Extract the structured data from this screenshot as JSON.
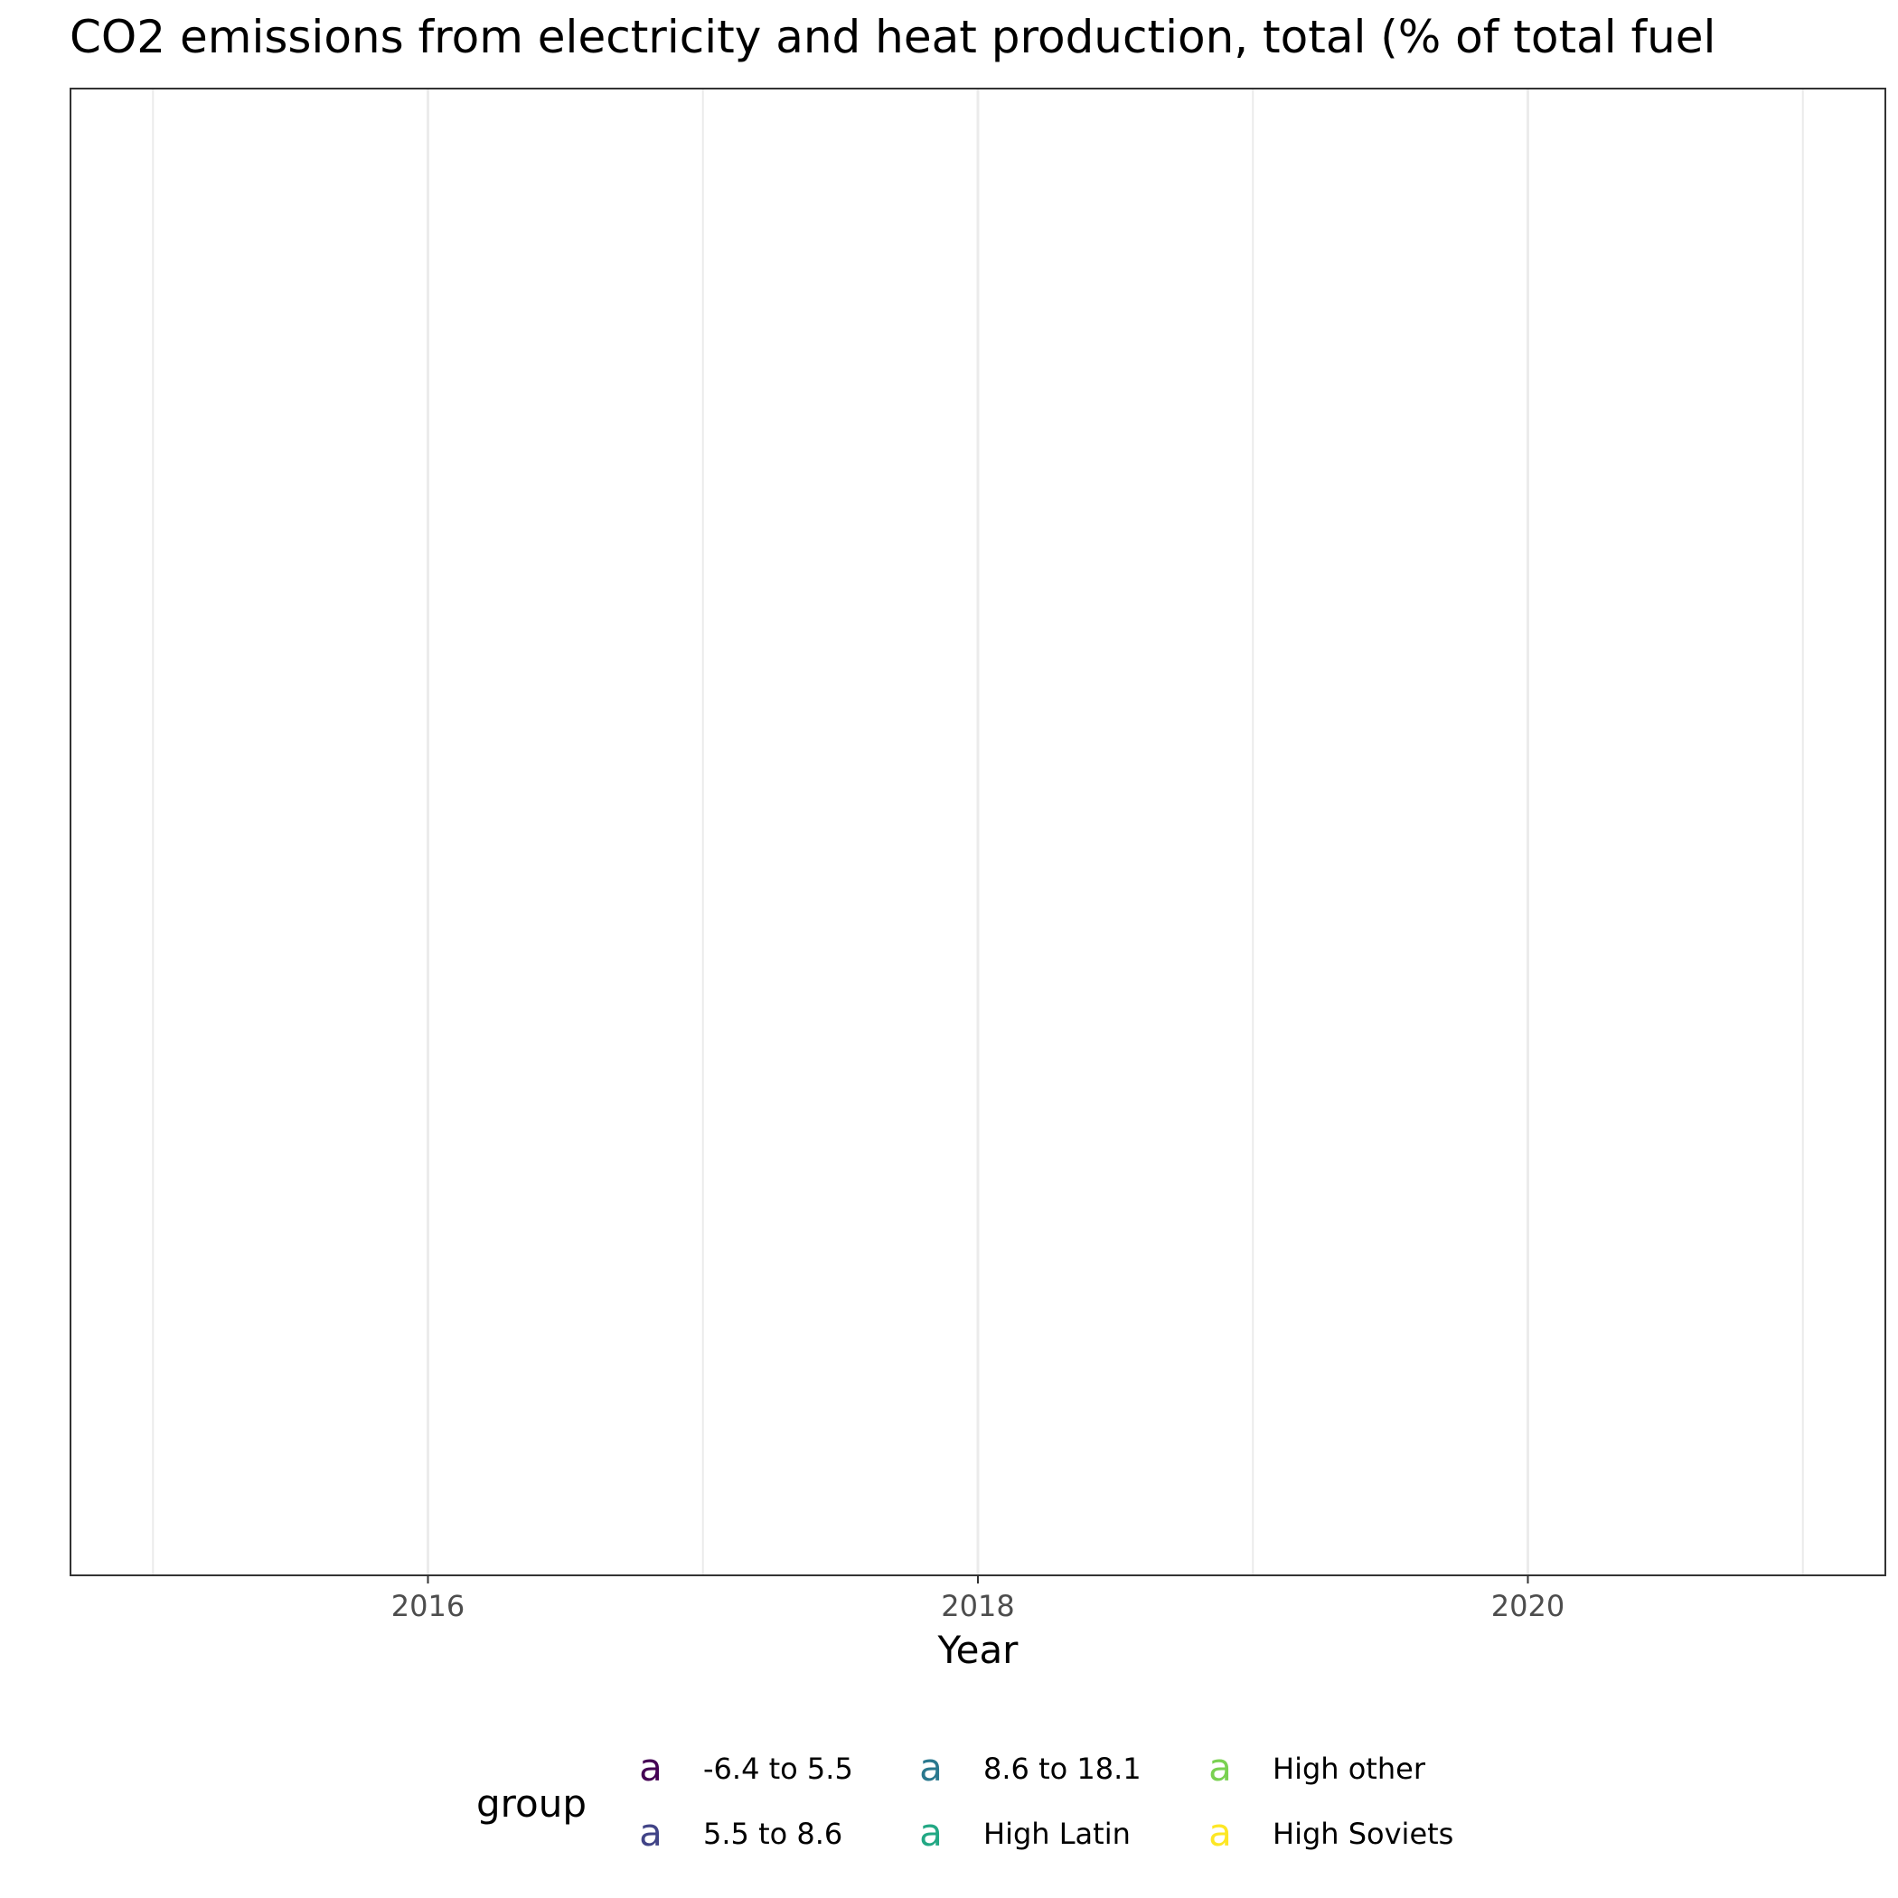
{
  "chart_data": {
    "type": "line",
    "title": "CO2 emissions from electricity and heat production, total (% of total fuel",
    "xlabel": "Year",
    "ylabel": "",
    "xlim": [
      2014.7,
      2021.3
    ],
    "x_ticks": [
      2016,
      2018,
      2020
    ],
    "x_tick_labels": [
      "2016",
      "2018",
      "2020"
    ],
    "x_minor_ticks": [
      2015,
      2017,
      2019,
      2021
    ],
    "grid": true,
    "series": [],
    "legend": {
      "title": "group",
      "position": "bottom",
      "key_glyph": "a",
      "entries": [
        {
          "label": "-6.4 to 5.5",
          "color": "#440154"
        },
        {
          "label": "5.5 to 8.6",
          "color": "#414487"
        },
        {
          "label": "8.6 to 18.1",
          "color": "#2A788E"
        },
        {
          "label": "High Latin",
          "color": "#22A884"
        },
        {
          "label": "High other",
          "color": "#7AD151"
        },
        {
          "label": "High Soviets",
          "color": "#FDE725"
        }
      ]
    }
  }
}
